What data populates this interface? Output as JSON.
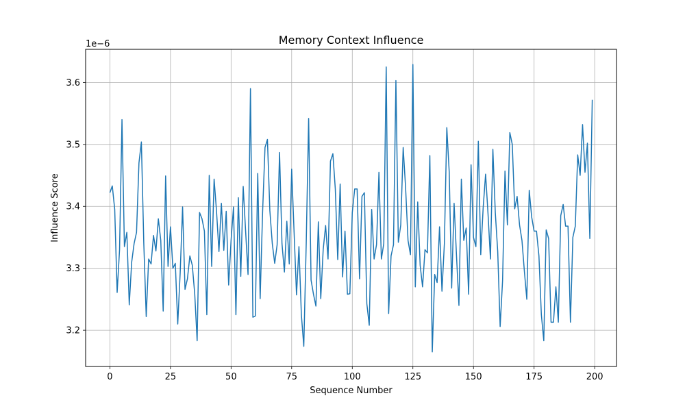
{
  "chart_data": {
    "type": "line",
    "title": "Memory Context Influence",
    "xlabel": "Sequence Number",
    "ylabel": "Influence Score",
    "offset_text": "1e−6",
    "grid": true,
    "xlim": [
      -10,
      209
    ],
    "ylim": [
      3.1415,
      3.6535
    ],
    "xticks": [
      0,
      25,
      50,
      75,
      100,
      125,
      150,
      175,
      200
    ],
    "xtick_labels": [
      "0",
      "25",
      "50",
      "75",
      "100",
      "125",
      "150",
      "175",
      "200"
    ],
    "yticks": [
      3.2,
      3.3,
      3.4,
      3.5,
      3.6
    ],
    "ytick_labels": [
      "3.2",
      "3.3",
      "3.4",
      "3.5",
      "3.6"
    ],
    "line_color": "#1f77b4",
    "series": [
      {
        "values": [
          3.422,
          3.433,
          3.395,
          3.261,
          3.33,
          3.54,
          3.335,
          3.358,
          3.241,
          3.31,
          3.34,
          3.358,
          3.47,
          3.504,
          3.34,
          3.222,
          3.315,
          3.307,
          3.353,
          3.328,
          3.38,
          3.345,
          3.231,
          3.449,
          3.303,
          3.367,
          3.3,
          3.308,
          3.21,
          3.292,
          3.399,
          3.266,
          3.283,
          3.32,
          3.305,
          3.259,
          3.183,
          3.39,
          3.38,
          3.36,
          3.225,
          3.45,
          3.303,
          3.444,
          3.392,
          3.327,
          3.405,
          3.329,
          3.392,
          3.273,
          3.345,
          3.399,
          3.225,
          3.414,
          3.287,
          3.432,
          3.36,
          3.29,
          3.59,
          3.221,
          3.223,
          3.453,
          3.251,
          3.39,
          3.495,
          3.508,
          3.393,
          3.34,
          3.308,
          3.338,
          3.487,
          3.34,
          3.294,
          3.376,
          3.307,
          3.46,
          3.358,
          3.257,
          3.335,
          3.225,
          3.174,
          3.34,
          3.542,
          3.281,
          3.258,
          3.239,
          3.375,
          3.251,
          3.33,
          3.369,
          3.315,
          3.473,
          3.485,
          3.428,
          3.314,
          3.436,
          3.286,
          3.36,
          3.258,
          3.259,
          3.39,
          3.428,
          3.428,
          3.283,
          3.416,
          3.422,
          3.243,
          3.208,
          3.395,
          3.315,
          3.338,
          3.455,
          3.315,
          3.34,
          3.625,
          3.227,
          3.32,
          3.338,
          3.603,
          3.342,
          3.37,
          3.495,
          3.43,
          3.345,
          3.322,
          3.629,
          3.27,
          3.407,
          3.305,
          3.27,
          3.33,
          3.325,
          3.482,
          3.165,
          3.29,
          3.277,
          3.367,
          3.263,
          3.34,
          3.527,
          3.455,
          3.268,
          3.405,
          3.32,
          3.24,
          3.444,
          3.345,
          3.365,
          3.258,
          3.467,
          3.35,
          3.335,
          3.505,
          3.322,
          3.398,
          3.452,
          3.388,
          3.315,
          3.492,
          3.39,
          3.327,
          3.206,
          3.28,
          3.457,
          3.37,
          3.519,
          3.5,
          3.396,
          3.416,
          3.37,
          3.345,
          3.295,
          3.25,
          3.426,
          3.383,
          3.36,
          3.36,
          3.32,
          3.225,
          3.183,
          3.362,
          3.348,
          3.213,
          3.213,
          3.27,
          3.213,
          3.385,
          3.403,
          3.368,
          3.368,
          3.213,
          3.35,
          3.368,
          3.483,
          3.45,
          3.532,
          3.455,
          3.502,
          3.348,
          3.572
        ]
      }
    ]
  }
}
